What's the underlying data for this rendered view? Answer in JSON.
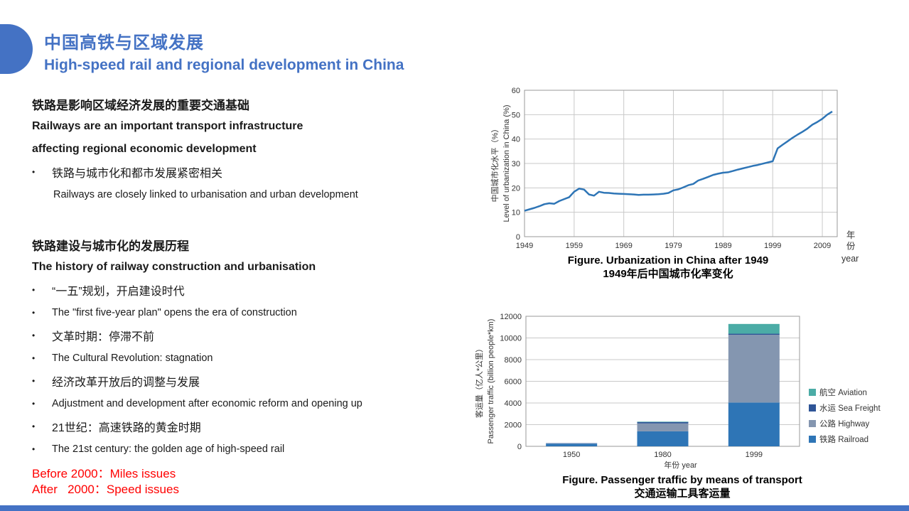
{
  "theme": {
    "accent": "#4472C4",
    "red": "#FF0000"
  },
  "slide": {
    "title_cn": "中国高铁与区域发展",
    "title_en": "High-speed rail and regional development in China"
  },
  "left": {
    "section1": {
      "heading_cn": "铁路是影响区域经济发展的重要交通基础",
      "heading_en_line1": "Railways are an important transport infrastructure",
      "heading_en_line2": "affecting regional economic development",
      "bullet_cn": "铁路与城市化和都市发展紧密相关",
      "bullet_en": "Railways are closely linked to urbanisation and urban development"
    },
    "section2": {
      "heading_cn": "铁路建设与城市化的发展历程",
      "heading_en": "The history of railway construction and urbanisation",
      "bullets": [
        {
          "text": "“一五”规划，开启建设时代",
          "lang": "cn"
        },
        {
          "text": "The \"first five-year plan\" opens the era of construction",
          "lang": "en"
        },
        {
          "text": "文革时期：停滞不前",
          "lang": "cn"
        },
        {
          "text": "The Cultural Revolution: stagnation",
          "lang": "en"
        },
        {
          "text": "经济改革开放后的调整与发展",
          "lang": "cn"
        },
        {
          "text": "Adjustment and development after economic reform and opening up",
          "lang": "en"
        },
        {
          "text": "21世纪：高速铁路的黄金时期",
          "lang": "cn"
        },
        {
          "text": "The 21st century: the golden age of high-speed rail",
          "lang": "en"
        }
      ]
    },
    "red_notes": [
      "Before 2000：Miles issues",
      "After   2000：Speed issues"
    ]
  },
  "chart_data": [
    {
      "type": "line",
      "title": "Figure. Urbanization in China after 1949",
      "title_cn": "1949年后中国城市化率变化",
      "ylabel_cn": "中国城市化水平（%）",
      "ylabel_en": "Level of urbanization in China (%)",
      "xlabel_cn": "年份",
      "xlabel_en": "year",
      "ylim": [
        0,
        60
      ],
      "ytick_step": 10,
      "xlim": [
        1949,
        2012
      ],
      "xticks": [
        1949,
        1959,
        1969,
        1979,
        1989,
        1999,
        2009
      ],
      "line_color": "#2E75B6",
      "grid": true,
      "x": [
        1949,
        1950,
        1951,
        1952,
        1953,
        1954,
        1955,
        1956,
        1957,
        1958,
        1959,
        1960,
        1961,
        1962,
        1963,
        1964,
        1965,
        1966,
        1967,
        1968,
        1969,
        1970,
        1971,
        1972,
        1973,
        1974,
        1975,
        1976,
        1977,
        1978,
        1979,
        1980,
        1981,
        1982,
        1983,
        1984,
        1985,
        1986,
        1987,
        1988,
        1989,
        1990,
        1991,
        1992,
        1993,
        1994,
        1995,
        1996,
        1997,
        1998,
        1999,
        2000,
        2001,
        2002,
        2003,
        2004,
        2005,
        2006,
        2007,
        2008,
        2009,
        2010,
        2011
      ],
      "y": [
        10.6,
        11.2,
        11.8,
        12.5,
        13.3,
        13.7,
        13.5,
        14.6,
        15.4,
        16.2,
        18.4,
        19.7,
        19.3,
        17.3,
        16.8,
        18.4,
        18.0,
        17.9,
        17.7,
        17.6,
        17.5,
        17.4,
        17.3,
        17.1,
        17.2,
        17.2,
        17.3,
        17.4,
        17.6,
        17.9,
        19.0,
        19.4,
        20.2,
        21.1,
        21.6,
        23.0,
        23.7,
        24.5,
        25.3,
        25.8,
        26.2,
        26.4,
        26.9,
        27.5,
        28.0,
        28.5,
        29.0,
        29.4,
        29.9,
        30.4,
        30.9,
        36.2,
        37.7,
        39.1,
        40.5,
        41.8,
        43.0,
        44.3,
        45.9,
        47.0,
        48.3,
        50.0,
        51.3
      ]
    },
    {
      "type": "bar",
      "stacked": true,
      "title": "Figure. Passenger traffic by means of transport",
      "title_cn": "交通运输工具客运量",
      "ylabel_cn": "客运量（亿人*公里）",
      "ylabel_en": "Passenger traffic (billion people*km)",
      "xlabel": "年份 year",
      "ylim": [
        0,
        12000
      ],
      "ytick_step": 2000,
      "grid": true,
      "legend_position": "right",
      "categories": [
        "1950",
        "1980",
        "1999"
      ],
      "series": [
        {
          "name": "铁路 Railroad",
          "color": "#2E75B6",
          "values": [
            250,
            1383,
            4041
          ]
        },
        {
          "name": "公路 Highway",
          "color": "#8496B0",
          "values": [
            30,
            730,
            6250
          ]
        },
        {
          "name": "水运 Sea Freight",
          "color": "#2F5597",
          "values": [
            20,
            129,
            100
          ]
        },
        {
          "name": "航空 Aviation",
          "color": "#4BACA6",
          "values": [
            0,
            40,
            900
          ]
        }
      ]
    }
  ]
}
